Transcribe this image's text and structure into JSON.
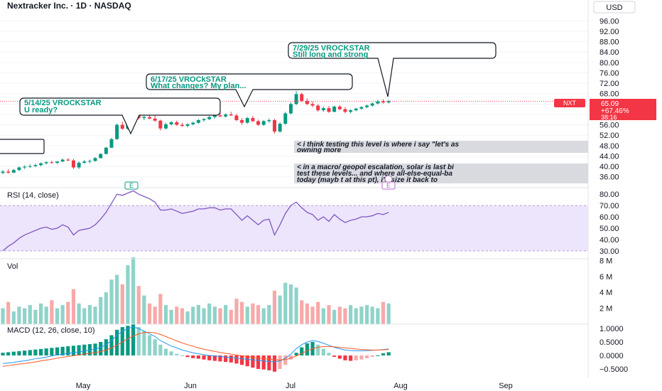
{
  "header": {
    "title": "Nextracker Inc. · 1D · NASDAQ",
    "currency": "USD"
  },
  "colors": {
    "up": "#089981",
    "down": "#f23645",
    "up_vol": "#8fd3c9",
    "down_vol": "#f7a9a9",
    "rsi": "#7e57c2",
    "rsi_band": "#ede5fb",
    "macd": "#2196f3",
    "signal": "#ff5722",
    "annot_green": "#089981",
    "price_badge": "#f23645"
  },
  "price_axis": {
    "ticks": [
      "96.00",
      "92.00",
      "88.00",
      "84.00",
      "80.00",
      "76.00",
      "72.00",
      "68.00",
      "64.00",
      "60.00",
      "56.00",
      "52.00",
      "48.00",
      "44.00",
      "40.00",
      "36.00"
    ],
    "last_price_label": "NXT",
    "last_price": "65.09",
    "change": "+67.46%",
    "countdown": "38:16"
  },
  "rsi": {
    "label": "RSI (14, close)",
    "ticks": [
      "80.00",
      "70.00",
      "60.00",
      "50.00",
      "40.00",
      "30.00"
    ]
  },
  "volume": {
    "label": "Vol",
    "ticks": [
      "8 M",
      "6 M",
      "4 M",
      "2 M"
    ]
  },
  "macd": {
    "label": "MACD (12, 26, close, 10)",
    "ticks": [
      "1.0000",
      "0.5000",
      "0.0000",
      "−0.5000"
    ]
  },
  "time_axis": [
    "May",
    "Jun",
    "Jul",
    "Aug",
    "Sep"
  ],
  "earnings_badge": "E",
  "dividend_badge": "E",
  "annotations": [
    {
      "id": "a0",
      "line1": "",
      "line2": ""
    },
    {
      "id": "a1",
      "line1": "5/14/25 VROCKSTAR",
      "line2": "U ready?"
    },
    {
      "id": "a2",
      "line1": "6/17/25 VROCkSTAR",
      "line2": "What changes? My plan..."
    },
    {
      "id": "a3",
      "line1": "7/29/25 VROCKSTAR",
      "line2": "Still long and strong"
    }
  ],
  "notes": [
    {
      "line1": "< i think testing this level is where i say \"let's as",
      "line2": "owning more"
    },
    {
      "line1": "< in a macro/ geopol escalation, solar is last bi",
      "line2": "test these levels... and where all-else-equal-ba",
      "line3": "today (mayb         t at this pt), i'd size it back to"
    }
  ],
  "chart_data": {
    "type": "candlestick",
    "title": "Nextracker Inc. · 1D · NASDAQ",
    "ylim": [
      34,
      100
    ],
    "candles": [
      {
        "o": 37.5,
        "h": 38.6,
        "l": 37.0,
        "c": 38.0
      },
      {
        "o": 38.0,
        "h": 38.9,
        "l": 37.2,
        "c": 37.6
      },
      {
        "o": 37.6,
        "h": 39.0,
        "l": 37.4,
        "c": 38.6
      },
      {
        "o": 38.6,
        "h": 40.0,
        "l": 38.2,
        "c": 39.6
      },
      {
        "o": 39.6,
        "h": 40.4,
        "l": 39.0,
        "c": 39.9
      },
      {
        "o": 39.9,
        "h": 40.8,
        "l": 39.4,
        "c": 40.1
      },
      {
        "o": 40.1,
        "h": 41.0,
        "l": 39.7,
        "c": 40.5
      },
      {
        "o": 40.5,
        "h": 41.5,
        "l": 40.0,
        "c": 41.2
      },
      {
        "o": 41.2,
        "h": 42.0,
        "l": 40.8,
        "c": 41.6
      },
      {
        "o": 41.6,
        "h": 42.2,
        "l": 41.0,
        "c": 41.4
      },
      {
        "o": 41.4,
        "h": 42.0,
        "l": 40.9,
        "c": 41.9
      },
      {
        "o": 41.9,
        "h": 43.0,
        "l": 41.6,
        "c": 42.6
      },
      {
        "o": 42.6,
        "h": 43.2,
        "l": 42.0,
        "c": 42.3
      },
      {
        "o": 42.3,
        "h": 42.9,
        "l": 39.0,
        "c": 39.6
      },
      {
        "o": 39.6,
        "h": 42.0,
        "l": 39.0,
        "c": 41.4
      },
      {
        "o": 41.4,
        "h": 42.4,
        "l": 41.0,
        "c": 41.9
      },
      {
        "o": 41.9,
        "h": 42.6,
        "l": 41.2,
        "c": 42.1
      },
      {
        "o": 42.1,
        "h": 43.6,
        "l": 41.8,
        "c": 43.2
      },
      {
        "o": 43.2,
        "h": 45.0,
        "l": 43.0,
        "c": 44.8
      },
      {
        "o": 44.8,
        "h": 47.5,
        "l": 44.6,
        "c": 47.2
      },
      {
        "o": 47.2,
        "h": 51.0,
        "l": 47.0,
        "c": 50.5
      },
      {
        "o": 50.5,
        "h": 56.5,
        "l": 50.2,
        "c": 56.0
      },
      {
        "o": 56.0,
        "h": 57.2,
        "l": 54.0,
        "c": 54.5
      },
      {
        "o": 54.5,
        "h": 58.8,
        "l": 54.0,
        "c": 58.2
      },
      {
        "o": 58.2,
        "h": 60.5,
        "l": 57.5,
        "c": 59.8
      },
      {
        "o": 59.8,
        "h": 61.0,
        "l": 58.0,
        "c": 58.6
      },
      {
        "o": 58.6,
        "h": 59.5,
        "l": 57.8,
        "c": 59.0
      },
      {
        "o": 59.0,
        "h": 60.0,
        "l": 58.2,
        "c": 58.4
      },
      {
        "o": 58.4,
        "h": 59.6,
        "l": 57.2,
        "c": 57.6
      },
      {
        "o": 57.6,
        "h": 58.0,
        "l": 53.8,
        "c": 54.6
      },
      {
        "o": 54.6,
        "h": 56.8,
        "l": 54.2,
        "c": 56.2
      },
      {
        "o": 56.2,
        "h": 57.4,
        "l": 55.8,
        "c": 57.0
      },
      {
        "o": 57.0,
        "h": 57.6,
        "l": 55.6,
        "c": 56.0
      },
      {
        "o": 56.0,
        "h": 56.8,
        "l": 55.2,
        "c": 55.6
      },
      {
        "o": 55.6,
        "h": 56.6,
        "l": 55.0,
        "c": 56.2
      },
      {
        "o": 56.2,
        "h": 57.2,
        "l": 55.8,
        "c": 56.8
      },
      {
        "o": 56.8,
        "h": 58.2,
        "l": 56.4,
        "c": 57.8
      },
      {
        "o": 57.8,
        "h": 58.6,
        "l": 57.2,
        "c": 58.2
      },
      {
        "o": 58.2,
        "h": 59.4,
        "l": 57.8,
        "c": 59.0
      },
      {
        "o": 59.0,
        "h": 60.0,
        "l": 58.4,
        "c": 59.6
      },
      {
        "o": 59.6,
        "h": 60.6,
        "l": 59.0,
        "c": 59.2
      },
      {
        "o": 59.2,
        "h": 60.4,
        "l": 58.8,
        "c": 60.0
      },
      {
        "o": 60.0,
        "h": 61.0,
        "l": 59.4,
        "c": 59.6
      },
      {
        "o": 59.6,
        "h": 60.2,
        "l": 57.4,
        "c": 57.8
      },
      {
        "o": 57.8,
        "h": 58.6,
        "l": 56.0,
        "c": 56.8
      },
      {
        "o": 56.8,
        "h": 59.0,
        "l": 56.4,
        "c": 58.6
      },
      {
        "o": 58.6,
        "h": 59.4,
        "l": 57.0,
        "c": 57.4
      },
      {
        "o": 57.4,
        "h": 58.0,
        "l": 55.6,
        "c": 56.0
      },
      {
        "o": 56.0,
        "h": 57.8,
        "l": 55.6,
        "c": 57.4
      },
      {
        "o": 57.4,
        "h": 58.4,
        "l": 56.8,
        "c": 57.8
      },
      {
        "o": 57.8,
        "h": 58.2,
        "l": 52.6,
        "c": 53.4
      },
      {
        "o": 53.4,
        "h": 57.0,
        "l": 53.0,
        "c": 56.4
      },
      {
        "o": 56.4,
        "h": 61.0,
        "l": 56.0,
        "c": 60.4
      },
      {
        "o": 60.4,
        "h": 64.6,
        "l": 60.0,
        "c": 64.0
      },
      {
        "o": 64.0,
        "h": 69.0,
        "l": 63.6,
        "c": 67.8
      },
      {
        "o": 67.8,
        "h": 68.4,
        "l": 64.8,
        "c": 65.2
      },
      {
        "o": 65.2,
        "h": 66.2,
        "l": 63.6,
        "c": 64.0
      },
      {
        "o": 64.0,
        "h": 65.0,
        "l": 62.8,
        "c": 63.4
      },
      {
        "o": 63.4,
        "h": 64.0,
        "l": 61.0,
        "c": 61.6
      },
      {
        "o": 61.6,
        "h": 63.0,
        "l": 61.0,
        "c": 62.4
      },
      {
        "o": 62.4,
        "h": 63.2,
        "l": 60.6,
        "c": 61.0
      },
      {
        "o": 61.0,
        "h": 63.4,
        "l": 60.8,
        "c": 63.0
      },
      {
        "o": 63.0,
        "h": 63.6,
        "l": 61.6,
        "c": 62.0
      },
      {
        "o": 62.0,
        "h": 62.8,
        "l": 60.4,
        "c": 61.0
      },
      {
        "o": 61.0,
        "h": 62.0,
        "l": 60.4,
        "c": 61.6
      },
      {
        "o": 61.6,
        "h": 62.6,
        "l": 61.2,
        "c": 62.2
      },
      {
        "o": 62.2,
        "h": 63.2,
        "l": 61.8,
        "c": 62.8
      },
      {
        "o": 62.8,
        "h": 63.8,
        "l": 62.4,
        "c": 63.4
      },
      {
        "o": 63.4,
        "h": 64.6,
        "l": 63.0,
        "c": 64.2
      },
      {
        "o": 64.2,
        "h": 65.6,
        "l": 63.8,
        "c": 65.0
      },
      {
        "o": 65.0,
        "h": 65.8,
        "l": 64.2,
        "c": 64.6
      },
      {
        "o": 64.6,
        "h": 65.6,
        "l": 64.2,
        "c": 65.09
      }
    ],
    "rsi_values": [
      30,
      34,
      37,
      41,
      44,
      46,
      48,
      50,
      51,
      49,
      50,
      53,
      51,
      44,
      48,
      49,
      50,
      53,
      58,
      64,
      72,
      80,
      79,
      81,
      83,
      80,
      78,
      76,
      73,
      66,
      66,
      67,
      65,
      63,
      64,
      65,
      67,
      67,
      68,
      68,
      66,
      67,
      67,
      62,
      57,
      61,
      57,
      53,
      57,
      58,
      44,
      53,
      63,
      70,
      73,
      68,
      64,
      62,
      57,
      60,
      56,
      62,
      58,
      55,
      57,
      58,
      60,
      60,
      61,
      63,
      62,
      64
    ],
    "volume_m": [
      2.0,
      2.8,
      1.6,
      2.2,
      2.0,
      2.4,
      1.8,
      2.6,
      2.2,
      3.0,
      2.0,
      2.4,
      2.8,
      4.4,
      2.6,
      2.0,
      2.4,
      2.2,
      3.4,
      4.0,
      5.6,
      6.2,
      5.0,
      7.4,
      8.4,
      4.8,
      3.6,
      2.6,
      2.2,
      3.8,
      2.4,
      1.8,
      2.2,
      2.0,
      1.6,
      2.2,
      2.4,
      2.0,
      2.6,
      2.2,
      2.0,
      2.4,
      1.8,
      3.2,
      2.8,
      2.2,
      2.6,
      2.4,
      2.0,
      2.4,
      4.2,
      3.6,
      5.2,
      5.0,
      4.6,
      3.0,
      2.6,
      2.2,
      2.8,
      2.0,
      2.4,
      1.8,
      2.2,
      2.0,
      2.4,
      2.0,
      2.2,
      2.4,
      2.2,
      2.0,
      2.8,
      2.6
    ],
    "macd_hist": [
      0.1,
      0.12,
      0.14,
      0.16,
      0.18,
      0.2,
      0.22,
      0.24,
      0.26,
      0.28,
      0.3,
      0.32,
      0.34,
      0.36,
      0.38,
      0.4,
      0.42,
      0.44,
      0.5,
      0.6,
      0.75,
      0.95,
      1.05,
      1.1,
      1.15,
      1.05,
      0.9,
      0.75,
      0.6,
      0.4,
      0.25,
      0.15,
      0.06,
      0.0,
      -0.06,
      -0.1,
      -0.12,
      -0.15,
      -0.18,
      -0.2,
      -0.22,
      -0.24,
      -0.26,
      -0.3,
      -0.35,
      -0.4,
      -0.45,
      -0.5,
      -0.52,
      -0.55,
      -0.6,
      -0.5,
      -0.35,
      -0.15,
      0.1,
      0.3,
      0.45,
      0.5,
      0.4,
      0.25,
      0.1,
      -0.05,
      -0.12,
      -0.18,
      -0.2,
      -0.18,
      -0.15,
      -0.1,
      -0.05,
      0.0,
      0.08,
      0.12
    ],
    "macd_line": [
      -0.3,
      -0.28,
      -0.26,
      -0.22,
      -0.2,
      -0.16,
      -0.12,
      -0.1,
      -0.06,
      -0.02,
      0.02,
      0.05,
      0.08,
      0.1,
      0.13,
      0.16,
      0.2,
      0.24,
      0.3,
      0.4,
      0.55,
      0.75,
      0.9,
      1.0,
      1.05,
      1.0,
      0.9,
      0.8,
      0.7,
      0.55,
      0.45,
      0.35,
      0.28,
      0.2,
      0.15,
      0.1,
      0.06,
      0.03,
      0.0,
      -0.02,
      -0.04,
      -0.06,
      -0.08,
      -0.1,
      -0.12,
      -0.14,
      -0.16,
      -0.18,
      -0.2,
      -0.22,
      -0.24,
      -0.2,
      -0.1,
      0.05,
      0.25,
      0.4,
      0.5,
      0.55,
      0.52,
      0.45,
      0.38,
      0.3,
      0.25,
      0.2,
      0.18,
      0.17,
      0.17,
      0.18,
      0.19,
      0.2,
      0.22,
      0.24
    ],
    "signal_line": [
      -0.4,
      -0.38,
      -0.35,
      -0.32,
      -0.3,
      -0.27,
      -0.24,
      -0.2,
      -0.17,
      -0.14,
      -0.1,
      -0.07,
      -0.04,
      -0.01,
      0.02,
      0.05,
      0.08,
      0.11,
      0.14,
      0.2,
      0.28,
      0.38,
      0.5,
      0.62,
      0.72,
      0.8,
      0.85,
      0.86,
      0.84,
      0.78,
      0.7,
      0.62,
      0.54,
      0.46,
      0.4,
      0.34,
      0.28,
      0.23,
      0.19,
      0.15,
      0.11,
      0.08,
      0.05,
      0.02,
      -0.01,
      -0.04,
      -0.07,
      -0.1,
      -0.12,
      -0.14,
      -0.16,
      -0.17,
      -0.15,
      -0.1,
      -0.02,
      0.08,
      0.17,
      0.25,
      0.3,
      0.33,
      0.33,
      0.32,
      0.3,
      0.28,
      0.26,
      0.24,
      0.22,
      0.21,
      0.2,
      0.2,
      0.21,
      0.22
    ]
  }
}
